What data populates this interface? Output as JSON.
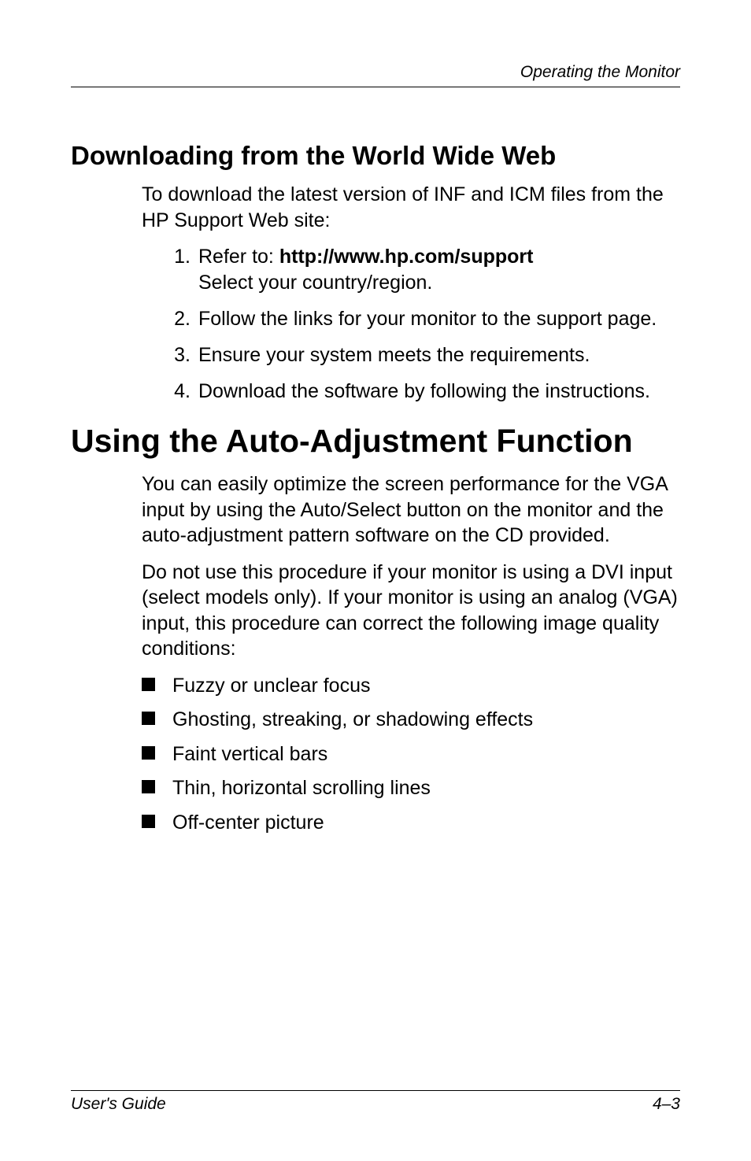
{
  "header": {
    "title": "Operating the Monitor"
  },
  "section1": {
    "heading": "Downloading from the World Wide Web",
    "intro": "To download the latest version of INF and ICM files from the HP Support Web site:",
    "steps": [
      {
        "num": "1.",
        "prefix": "Refer to: ",
        "bold": "http://www.hp.com/support",
        "suffix": "Select your country/region."
      },
      {
        "num": "2.",
        "text": "Follow the links for your monitor to the support page."
      },
      {
        "num": "3.",
        "text": "Ensure your system meets the requirements."
      },
      {
        "num": "4.",
        "text": "Download the software by following the instructions."
      }
    ]
  },
  "section2": {
    "heading": "Using the Auto-Adjustment Function",
    "para1": "You can easily optimize the screen performance for the VGA input by using the Auto/Select button on the monitor and the auto-adjustment pattern software on the CD provided.",
    "para2": "Do not use this procedure if your monitor is using a DVI input (select models only). If your monitor is using an analog (VGA) input, this procedure can correct the following image quality conditions:",
    "bullets": [
      "Fuzzy or unclear focus",
      "Ghosting, streaking, or shadowing effects",
      "Faint vertical bars",
      "Thin, horizontal scrolling lines",
      "Off-center picture"
    ]
  },
  "footer": {
    "left": "User's Guide",
    "right": "4–3"
  }
}
